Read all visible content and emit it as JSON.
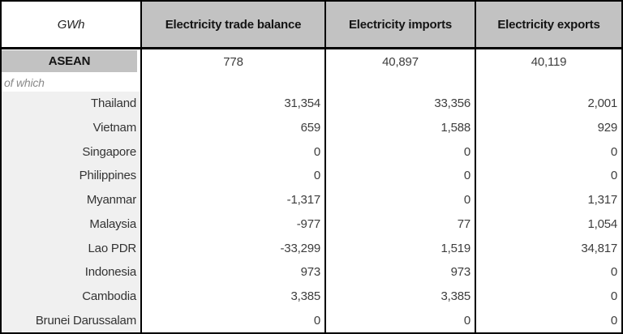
{
  "chart_data": {
    "type": "table",
    "unit": "GWh",
    "columns": [
      "Electricity trade balance",
      "Electricity imports",
      "Electricity exports"
    ],
    "summary": {
      "label": "ASEAN",
      "values": [
        "778",
        "40,897",
        "40,119"
      ]
    },
    "group_note": "of which",
    "rows": [
      {
        "label": "Thailand",
        "values": [
          "31,354",
          "33,356",
          "2,001"
        ]
      },
      {
        "label": "Vietnam",
        "values": [
          "659",
          "1,588",
          "929"
        ]
      },
      {
        "label": "Singapore",
        "values": [
          "0",
          "0",
          "0"
        ]
      },
      {
        "label": "Philippines",
        "values": [
          "0",
          "0",
          "0"
        ]
      },
      {
        "label": "Myanmar",
        "values": [
          "-1,317",
          "0",
          "1,317"
        ]
      },
      {
        "label": "Malaysia",
        "values": [
          "-977",
          "77",
          "1,054"
        ]
      },
      {
        "label": "Lao PDR",
        "values": [
          "-33,299",
          "1,519",
          "34,817"
        ]
      },
      {
        "label": "Indonesia",
        "values": [
          "973",
          "973",
          "0"
        ]
      },
      {
        "label": "Cambodia",
        "values": [
          "3,385",
          "3,385",
          "0"
        ]
      },
      {
        "label": "Brunei Darussalam",
        "values": [
          "0",
          "0",
          "0"
        ]
      }
    ],
    "colors": {
      "header_bg": "#c2c2c2",
      "summary_label_bg": "#c2c2c2",
      "country_label_bg": "#f0f0f0",
      "border": "#000000",
      "note_text": "#8a8a8a",
      "value_text": "#3d3d3d"
    }
  }
}
